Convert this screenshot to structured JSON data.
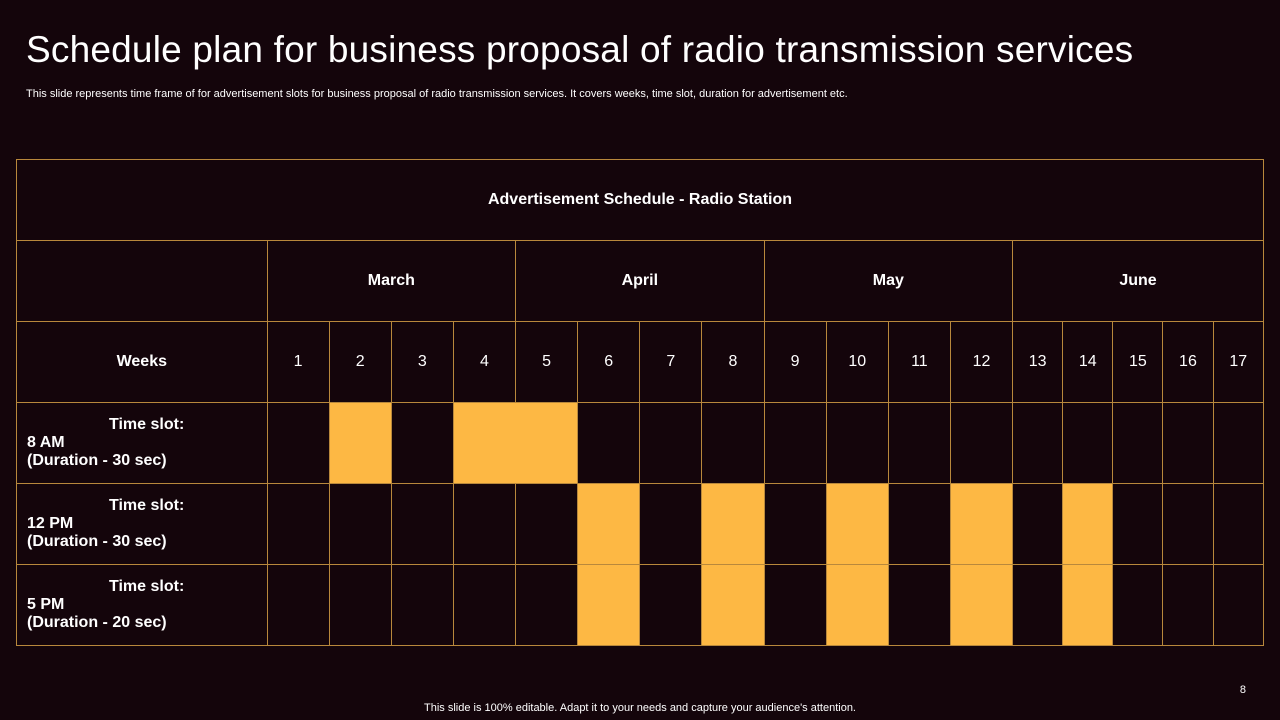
{
  "slide": {
    "title": "Schedule plan for business proposal of radio transmission services",
    "subtitle": "This slide represents time frame of for advertisement slots for business proposal of radio transmission services. It covers weeks, time slot, duration for advertisement etc.",
    "page_number": "8",
    "footer": "This slide is 100% editable. Adapt it to your needs and capture your audience's attention."
  },
  "table": {
    "header": "Advertisement Schedule - Radio Station",
    "weeks_label": "Weeks",
    "months": [
      {
        "name": "March",
        "weeks": 4
      },
      {
        "name": "April",
        "weeks": 4
      },
      {
        "name": "May",
        "weeks": 4
      },
      {
        "name": "June",
        "weeks": 5
      }
    ],
    "weeks": [
      "1",
      "2",
      "3",
      "4",
      "5",
      "6",
      "7",
      "8",
      "9",
      "10",
      "11",
      "12",
      "13",
      "14",
      "15",
      "16",
      "17"
    ],
    "rows": [
      {
        "label_line1": "Time slot:",
        "label_line2": "8 AM",
        "label_line3": "(Duration - 30 sec)",
        "active_weeks": [
          2,
          4,
          5
        ]
      },
      {
        "label_line1": "Time slot:",
        "label_line2": "12 PM",
        "label_line3": "(Duration - 30 sec)",
        "active_weeks": [
          6,
          8,
          10,
          12,
          14
        ]
      },
      {
        "label_line1": "Time slot:",
        "label_line2": "5 PM",
        "label_line3": "(Duration - 20 sec)",
        "active_weeks": [
          6,
          8,
          10,
          12,
          14
        ]
      }
    ],
    "colors": {
      "background": "#14050b",
      "border": "#b8883c",
      "highlight": "#fdb844"
    }
  }
}
